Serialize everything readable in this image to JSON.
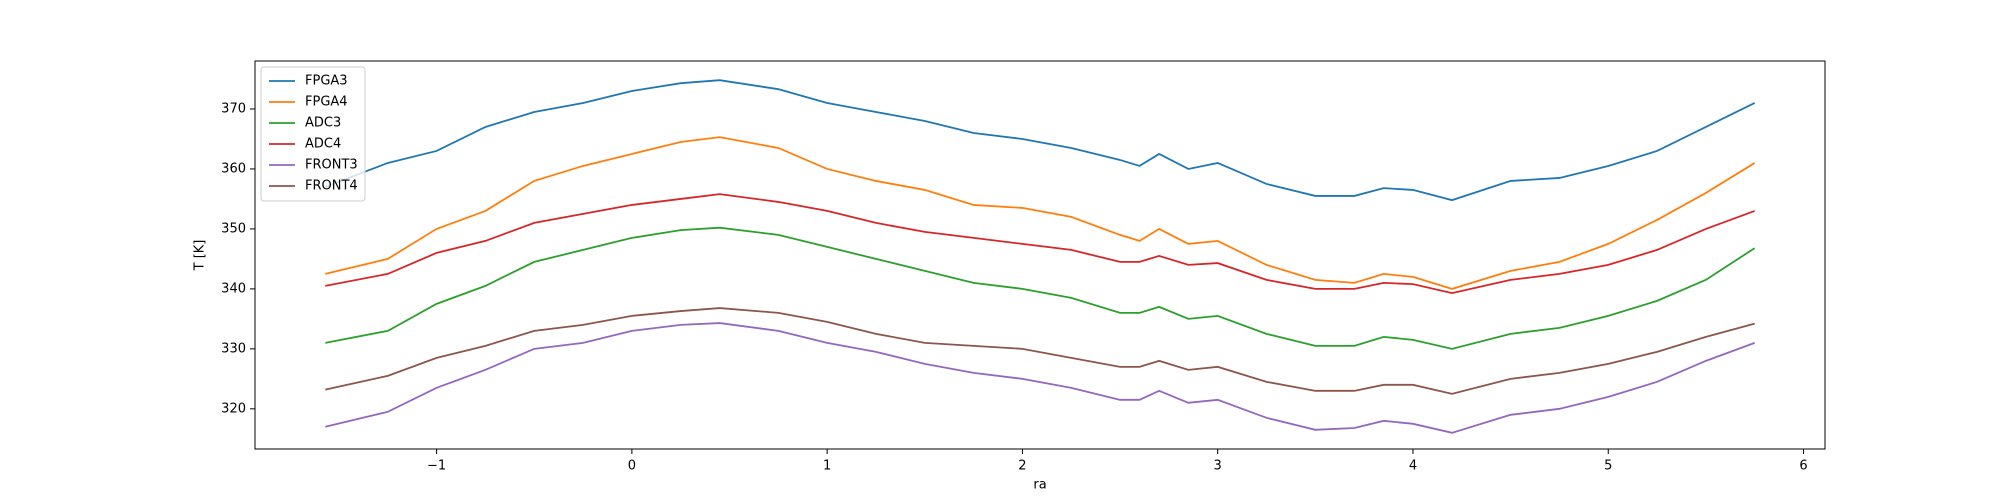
{
  "chart_data": {
    "type": "line",
    "xlabel": "ra",
    "ylabel": "T [K]",
    "x": [
      -1.57,
      -1.25,
      -1,
      -0.75,
      -0.5,
      -0.25,
      0,
      0.25,
      0.45,
      0.75,
      1,
      1.25,
      1.5,
      1.75,
      2,
      2.25,
      2.5,
      2.6,
      2.7,
      2.85,
      3,
      3.25,
      3.5,
      3.7,
      3.85,
      4,
      4.2,
      4.5,
      4.75,
      5,
      5.25,
      5.5,
      5.75
    ],
    "series": [
      {
        "name": "FPGA3",
        "color": "#1f77b4",
        "values": [
          357,
          361,
          363,
          367,
          369.5,
          371,
          373,
          374.3,
          374.8,
          373.3,
          371,
          369.5,
          368,
          366,
          365,
          363.5,
          361.5,
          360.5,
          362.5,
          360,
          361,
          357.5,
          355.5,
          355.5,
          356.8,
          356.5,
          354.8,
          358,
          358.5,
          360.5,
          363,
          367,
          371
        ]
      },
      {
        "name": "FPGA4",
        "color": "#ff7f0e",
        "values": [
          342.5,
          345,
          350,
          353,
          358,
          360.5,
          362.5,
          364.5,
          365.3,
          363.5,
          360,
          358,
          356.5,
          354,
          353.5,
          352,
          349,
          348,
          350,
          347.5,
          348,
          344,
          341.5,
          341,
          342.5,
          342,
          340,
          343,
          344.5,
          347.5,
          351.5,
          356,
          361
        ]
      },
      {
        "name": "ADC3",
        "color": "#2ca02c",
        "values": [
          331,
          333,
          337.5,
          340.5,
          344.5,
          346.5,
          348.5,
          349.8,
          350.2,
          349,
          347,
          345,
          343,
          341,
          340,
          338.5,
          336,
          336,
          337,
          335,
          335.5,
          332.5,
          330.5,
          330.5,
          332,
          331.5,
          330,
          332.5,
          333.5,
          335.5,
          338,
          341.5,
          346.8
        ]
      },
      {
        "name": "ADC4",
        "color": "#d62728",
        "values": [
          340.5,
          342.5,
          346,
          348,
          351,
          352.5,
          354,
          355,
          355.8,
          354.5,
          353,
          351,
          349.5,
          348.5,
          347.5,
          346.5,
          344.5,
          344.5,
          345.5,
          344,
          344.3,
          341.5,
          340,
          340,
          341,
          340.8,
          339.3,
          341.5,
          342.5,
          344,
          346.5,
          350,
          353
        ]
      },
      {
        "name": "FRONT3",
        "color": "#9467bd",
        "values": [
          317,
          319.5,
          323.5,
          326.5,
          330,
          331,
          333,
          334,
          334.3,
          333,
          331,
          329.5,
          327.5,
          326,
          325,
          323.5,
          321.5,
          321.5,
          323,
          321,
          321.5,
          318.5,
          316.5,
          316.8,
          318,
          317.5,
          316,
          319,
          320,
          322,
          324.5,
          328,
          331
        ]
      },
      {
        "name": "FRONT4",
        "color": "#8c564b",
        "values": [
          323.2,
          325.5,
          328.5,
          330.5,
          333,
          334,
          335.5,
          336.3,
          336.8,
          336,
          334.5,
          332.5,
          331,
          330.5,
          330,
          328.5,
          327,
          327,
          328,
          326.5,
          327,
          324.5,
          323,
          323,
          324,
          324,
          322.5,
          325,
          326,
          327.5,
          329.5,
          332,
          334.2
        ]
      }
    ],
    "xlim": [
      -1.93,
      6.11
    ],
    "ylim": [
      313.3,
      378
    ],
    "xticks": [
      {
        "value": -1,
        "label": "−1"
      },
      0,
      1,
      2,
      3,
      4,
      5,
      6
    ],
    "yticks": [
      320,
      330,
      340,
      350,
      360,
      370
    ],
    "legend": "upper left"
  }
}
